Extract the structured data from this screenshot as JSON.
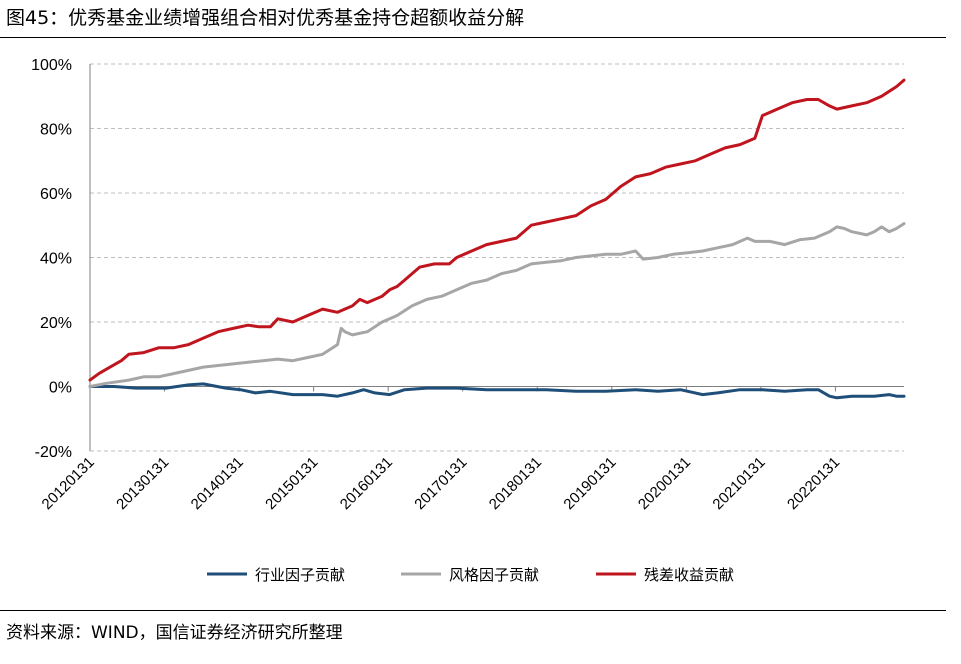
{
  "header": {
    "title": "图45：优秀基金业绩增强组合相对优秀基金持仓超额收益分解"
  },
  "footer": {
    "source": "资料来源：WIND，国信证券经济研究所整理"
  },
  "chart_data": {
    "type": "line",
    "title": "图45：优秀基金业绩增强组合相对优秀基金持仓超额收益分解",
    "xlabel": "",
    "ylabel": "",
    "ylim": [
      -0.2,
      1.0
    ],
    "yticks": [
      -0.2,
      0.0,
      0.2,
      0.4,
      0.6,
      0.8,
      1.0
    ],
    "ytick_labels": [
      "-20%",
      "0%",
      "20%",
      "40%",
      "60%",
      "80%",
      "100%"
    ],
    "xlim": [
      2012.08,
      2023.0
    ],
    "xticks": [
      2012.08,
      2013.08,
      2014.08,
      2015.08,
      2016.08,
      2017.08,
      2018.08,
      2019.08,
      2020.08,
      2021.08,
      2022.08
    ],
    "xtick_labels": [
      "20120131",
      "20130131",
      "20140131",
      "20150131",
      "20160131",
      "20170131",
      "20180131",
      "20190131",
      "20200131",
      "20210131",
      "20220131"
    ],
    "grid": "horizontal dashed",
    "legend_position": "bottom",
    "series": [
      {
        "name": "行业因子贡献",
        "color": "#1f4e79",
        "points": [
          [
            2012.08,
            0.0
          ],
          [
            2012.4,
            0.0
          ],
          [
            2012.7,
            -0.005
          ],
          [
            2013.1,
            -0.005
          ],
          [
            2013.4,
            0.005
          ],
          [
            2013.6,
            0.008
          ],
          [
            2013.9,
            -0.005
          ],
          [
            2014.1,
            -0.01
          ],
          [
            2014.3,
            -0.02
          ],
          [
            2014.5,
            -0.015
          ],
          [
            2014.8,
            -0.025
          ],
          [
            2015.0,
            -0.025
          ],
          [
            2015.2,
            -0.025
          ],
          [
            2015.4,
            -0.03
          ],
          [
            2015.6,
            -0.02
          ],
          [
            2015.75,
            -0.01
          ],
          [
            2015.9,
            -0.02
          ],
          [
            2016.1,
            -0.025
          ],
          [
            2016.3,
            -0.01
          ],
          [
            2016.6,
            -0.005
          ],
          [
            2017.0,
            -0.005
          ],
          [
            2017.4,
            -0.01
          ],
          [
            2017.8,
            -0.01
          ],
          [
            2018.2,
            -0.01
          ],
          [
            2018.6,
            -0.015
          ],
          [
            2019.0,
            -0.015
          ],
          [
            2019.4,
            -0.01
          ],
          [
            2019.7,
            -0.015
          ],
          [
            2020.0,
            -0.01
          ],
          [
            2020.1,
            -0.015
          ],
          [
            2020.3,
            -0.025
          ],
          [
            2020.5,
            -0.02
          ],
          [
            2020.8,
            -0.01
          ],
          [
            2021.1,
            -0.01
          ],
          [
            2021.4,
            -0.015
          ],
          [
            2021.7,
            -0.01
          ],
          [
            2021.85,
            -0.01
          ],
          [
            2022.0,
            -0.03
          ],
          [
            2022.1,
            -0.035
          ],
          [
            2022.3,
            -0.03
          ],
          [
            2022.6,
            -0.03
          ],
          [
            2022.8,
            -0.025
          ],
          [
            2022.9,
            -0.03
          ],
          [
            2023.0,
            -0.03
          ]
        ]
      },
      {
        "name": "风格因子贡献",
        "color": "#a6a6a6",
        "points": [
          [
            2012.08,
            0.0
          ],
          [
            2012.3,
            0.01
          ],
          [
            2012.6,
            0.02
          ],
          [
            2012.8,
            0.03
          ],
          [
            2013.0,
            0.03
          ],
          [
            2013.2,
            0.04
          ],
          [
            2013.4,
            0.05
          ],
          [
            2013.6,
            0.06
          ],
          [
            2013.8,
            0.065
          ],
          [
            2014.0,
            0.07
          ],
          [
            2014.2,
            0.075
          ],
          [
            2014.4,
            0.08
          ],
          [
            2014.6,
            0.085
          ],
          [
            2014.8,
            0.08
          ],
          [
            2015.0,
            0.09
          ],
          [
            2015.2,
            0.1
          ],
          [
            2015.4,
            0.13
          ],
          [
            2015.45,
            0.18
          ],
          [
            2015.5,
            0.17
          ],
          [
            2015.6,
            0.16
          ],
          [
            2015.8,
            0.17
          ],
          [
            2016.0,
            0.2
          ],
          [
            2016.2,
            0.22
          ],
          [
            2016.4,
            0.25
          ],
          [
            2016.6,
            0.27
          ],
          [
            2016.8,
            0.28
          ],
          [
            2017.0,
            0.3
          ],
          [
            2017.2,
            0.32
          ],
          [
            2017.4,
            0.33
          ],
          [
            2017.6,
            0.35
          ],
          [
            2017.8,
            0.36
          ],
          [
            2018.0,
            0.38
          ],
          [
            2018.2,
            0.385
          ],
          [
            2018.4,
            0.39
          ],
          [
            2018.6,
            0.4
          ],
          [
            2018.8,
            0.405
          ],
          [
            2019.0,
            0.41
          ],
          [
            2019.2,
            0.41
          ],
          [
            2019.4,
            0.42
          ],
          [
            2019.5,
            0.395
          ],
          [
            2019.7,
            0.4
          ],
          [
            2019.9,
            0.41
          ],
          [
            2020.1,
            0.415
          ],
          [
            2020.3,
            0.42
          ],
          [
            2020.5,
            0.43
          ],
          [
            2020.7,
            0.44
          ],
          [
            2020.9,
            0.46
          ],
          [
            2021.0,
            0.45
          ],
          [
            2021.2,
            0.45
          ],
          [
            2021.4,
            0.44
          ],
          [
            2021.6,
            0.455
          ],
          [
            2021.8,
            0.46
          ],
          [
            2022.0,
            0.48
          ],
          [
            2022.1,
            0.495
          ],
          [
            2022.2,
            0.49
          ],
          [
            2022.3,
            0.48
          ],
          [
            2022.5,
            0.47
          ],
          [
            2022.6,
            0.48
          ],
          [
            2022.7,
            0.495
          ],
          [
            2022.8,
            0.48
          ],
          [
            2022.9,
            0.49
          ],
          [
            2023.0,
            0.505
          ]
        ]
      },
      {
        "name": "残差收益贡献",
        "color": "#c0141e",
        "points": [
          [
            2012.08,
            0.02
          ],
          [
            2012.2,
            0.04
          ],
          [
            2012.35,
            0.06
          ],
          [
            2012.5,
            0.08
          ],
          [
            2012.6,
            0.1
          ],
          [
            2012.8,
            0.105
          ],
          [
            2013.0,
            0.12
          ],
          [
            2013.2,
            0.12
          ],
          [
            2013.4,
            0.13
          ],
          [
            2013.6,
            0.15
          ],
          [
            2013.8,
            0.17
          ],
          [
            2014.0,
            0.18
          ],
          [
            2014.2,
            0.19
          ],
          [
            2014.35,
            0.185
          ],
          [
            2014.5,
            0.185
          ],
          [
            2014.6,
            0.21
          ],
          [
            2014.8,
            0.2
          ],
          [
            2015.0,
            0.22
          ],
          [
            2015.2,
            0.24
          ],
          [
            2015.4,
            0.23
          ],
          [
            2015.6,
            0.25
          ],
          [
            2015.7,
            0.27
          ],
          [
            2015.8,
            0.26
          ],
          [
            2016.0,
            0.28
          ],
          [
            2016.1,
            0.3
          ],
          [
            2016.2,
            0.31
          ],
          [
            2016.3,
            0.33
          ],
          [
            2016.5,
            0.37
          ],
          [
            2016.7,
            0.38
          ],
          [
            2016.9,
            0.38
          ],
          [
            2017.0,
            0.4
          ],
          [
            2017.2,
            0.42
          ],
          [
            2017.4,
            0.44
          ],
          [
            2017.6,
            0.45
          ],
          [
            2017.8,
            0.46
          ],
          [
            2018.0,
            0.5
          ],
          [
            2018.2,
            0.51
          ],
          [
            2018.4,
            0.52
          ],
          [
            2018.6,
            0.53
          ],
          [
            2018.8,
            0.56
          ],
          [
            2019.0,
            0.58
          ],
          [
            2019.2,
            0.62
          ],
          [
            2019.4,
            0.65
          ],
          [
            2019.6,
            0.66
          ],
          [
            2019.8,
            0.68
          ],
          [
            2020.0,
            0.69
          ],
          [
            2020.2,
            0.7
          ],
          [
            2020.4,
            0.72
          ],
          [
            2020.6,
            0.74
          ],
          [
            2020.8,
            0.75
          ],
          [
            2021.0,
            0.77
          ],
          [
            2021.1,
            0.84
          ],
          [
            2021.3,
            0.86
          ],
          [
            2021.5,
            0.88
          ],
          [
            2021.7,
            0.89
          ],
          [
            2021.85,
            0.89
          ],
          [
            2022.0,
            0.87
          ],
          [
            2022.1,
            0.86
          ],
          [
            2022.3,
            0.87
          ],
          [
            2022.5,
            0.88
          ],
          [
            2022.7,
            0.9
          ],
          [
            2022.9,
            0.93
          ],
          [
            2023.0,
            0.95
          ]
        ]
      }
    ]
  }
}
